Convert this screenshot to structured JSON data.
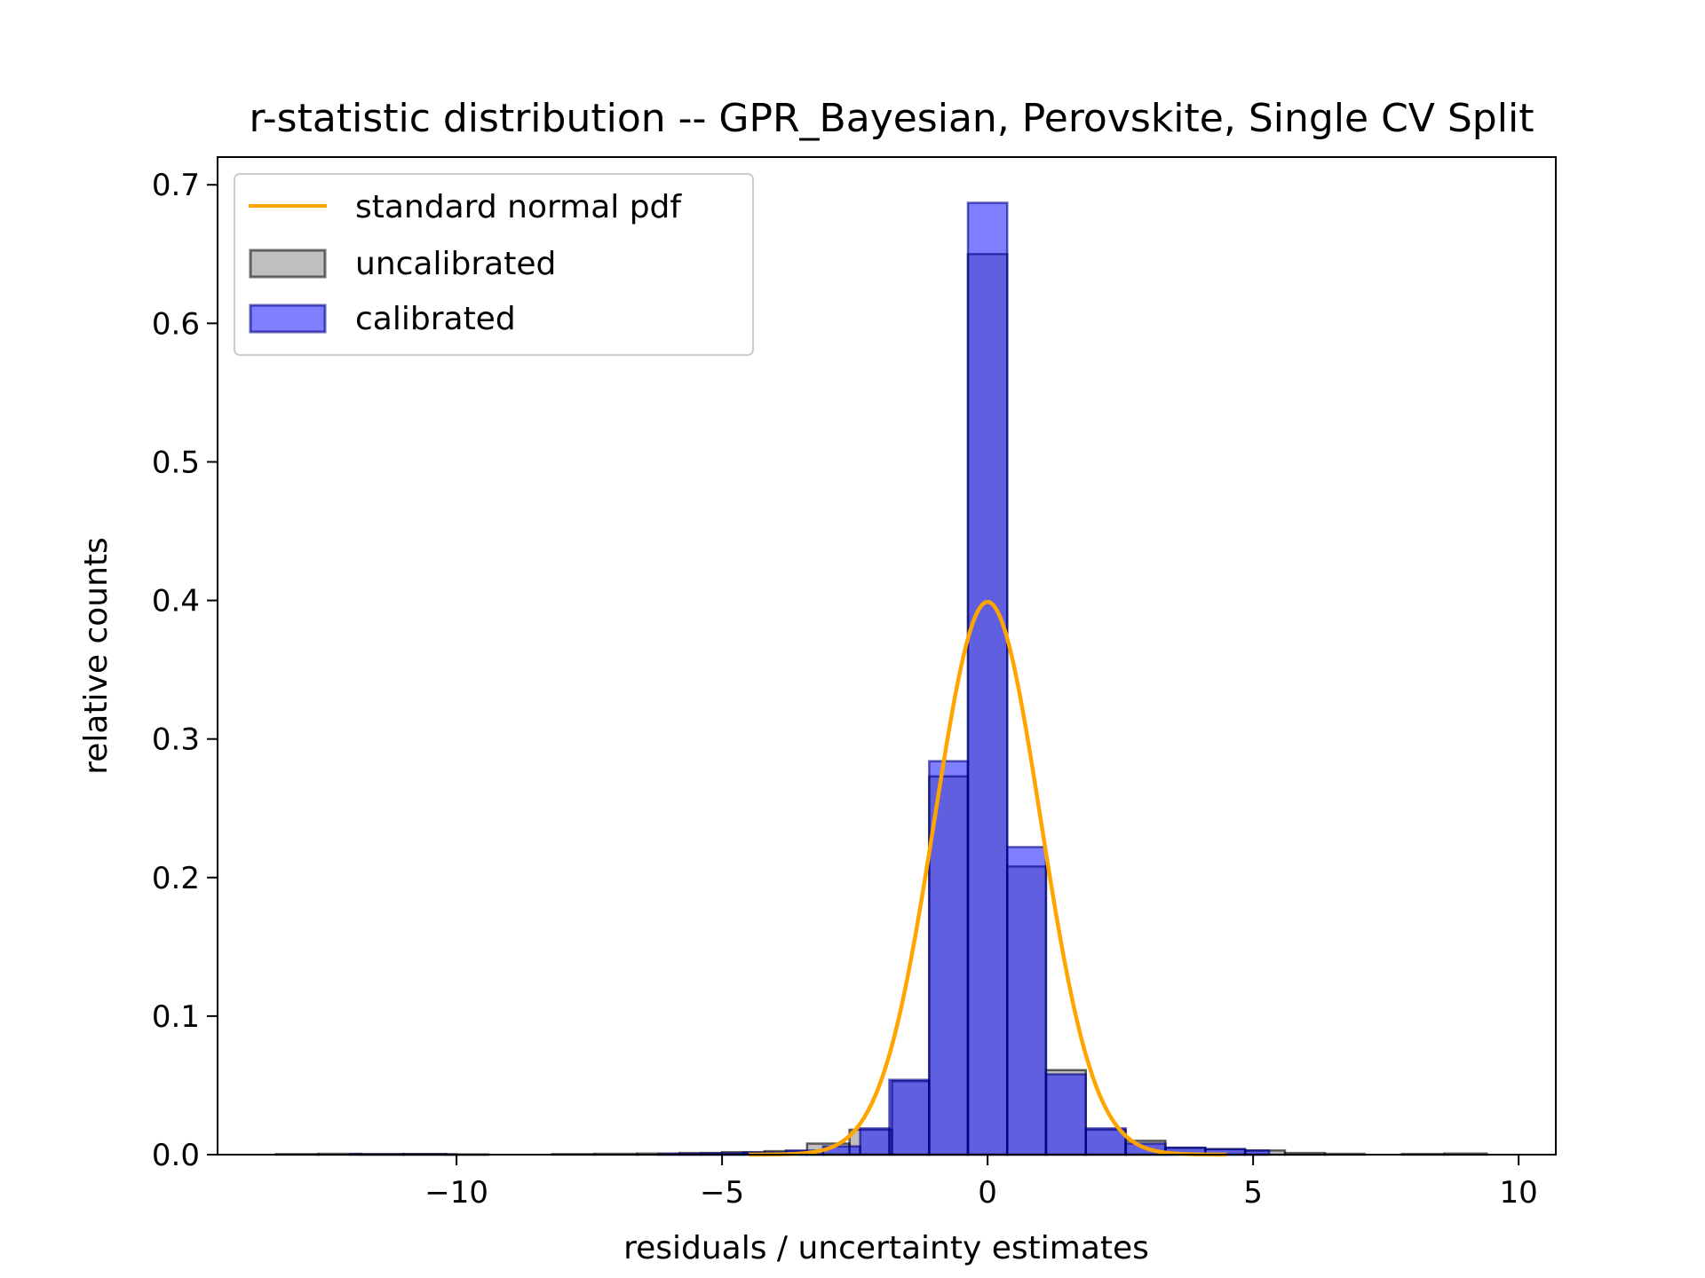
{
  "chart_data": {
    "type": "bar",
    "title": "r-statistic distribution -- GPR_Bayesian, Perovskite, Single CV Split",
    "xlabel": "residuals / uncertainty estimates",
    "ylabel": "relative counts",
    "xlim": [
      -14.5,
      10.7
    ],
    "ylim": [
      0,
      0.72
    ],
    "xticks": [
      -10,
      -5,
      0,
      5,
      10
    ],
    "xtick_labels": [
      "−10",
      "−5",
      "0",
      "5",
      "10"
    ],
    "yticks": [
      0.0,
      0.1,
      0.2,
      0.3,
      0.4,
      0.5,
      0.6,
      0.7
    ],
    "ytick_labels": [
      "0.0",
      "0.1",
      "0.2",
      "0.3",
      "0.4",
      "0.5",
      "0.6",
      "0.7"
    ],
    "grid": false,
    "legend_position": "top-left",
    "legend": [
      "standard normal pdf",
      "uncalibrated",
      "calibrated"
    ],
    "series": [
      {
        "name": "uncalibrated",
        "color": "#808080",
        "edge_color": "#000000",
        "bins": [
          [
            -13.4,
            -12.6,
            0.0004
          ],
          [
            -12.6,
            -11.8,
            0.0006
          ],
          [
            -11.8,
            -11.0,
            0.0003
          ],
          [
            -11.0,
            -10.2,
            0.0005
          ],
          [
            -10.2,
            -9.4,
            0.0002
          ],
          [
            -8.2,
            -7.4,
            0.0004
          ],
          [
            -7.4,
            -6.6,
            0.0006
          ],
          [
            -6.6,
            -5.8,
            0.0008
          ],
          [
            -5.8,
            -5.0,
            0.0012
          ],
          [
            -5.0,
            -4.2,
            0.0018
          ],
          [
            -4.2,
            -3.4,
            0.0025
          ],
          [
            -3.4,
            -2.6,
            0.008
          ],
          [
            -2.6,
            -1.8,
            0.018
          ],
          [
            -1.8,
            -1.1,
            0.053
          ],
          [
            -1.1,
            -0.37,
            0.273
          ],
          [
            -0.37,
            0.37,
            0.65
          ],
          [
            0.37,
            1.1,
            0.208
          ],
          [
            1.1,
            1.85,
            0.061
          ],
          [
            1.85,
            2.6,
            0.018
          ],
          [
            2.6,
            3.35,
            0.01
          ],
          [
            3.35,
            4.1,
            0.005
          ],
          [
            4.1,
            4.85,
            0.004
          ],
          [
            4.85,
            5.6,
            0.003
          ],
          [
            5.6,
            6.35,
            0.0012
          ],
          [
            6.35,
            7.1,
            0.0006
          ],
          [
            7.8,
            8.6,
            0.0005
          ],
          [
            8.6,
            9.4,
            0.0008
          ]
        ]
      },
      {
        "name": "calibrated",
        "color": "#0000ff",
        "edge_color": "#000080",
        "bins": [
          [
            -12.0,
            -11.0,
            0.0004
          ],
          [
            -11.0,
            -10.0,
            0.0003
          ],
          [
            -6.2,
            -5.4,
            0.0006
          ],
          [
            -5.4,
            -4.6,
            0.001
          ],
          [
            -4.6,
            -3.8,
            0.0016
          ],
          [
            -3.8,
            -3.1,
            0.003
          ],
          [
            -3.1,
            -2.4,
            0.006
          ],
          [
            -2.4,
            -1.85,
            0.019
          ],
          [
            -1.85,
            -1.1,
            0.054
          ],
          [
            -1.1,
            -0.37,
            0.284
          ],
          [
            -0.37,
            0.37,
            0.687
          ],
          [
            0.37,
            1.1,
            0.222
          ],
          [
            1.1,
            1.85,
            0.058
          ],
          [
            1.85,
            2.6,
            0.019
          ],
          [
            2.6,
            3.35,
            0.008
          ],
          [
            3.35,
            4.1,
            0.005
          ],
          [
            4.1,
            4.85,
            0.004
          ],
          [
            4.85,
            5.3,
            0.003
          ]
        ]
      },
      {
        "name": "standard normal pdf",
        "type": "line",
        "color": "#ffa500",
        "function": "standard_normal_pdf",
        "x_range": [
          -4.5,
          4.5
        ]
      }
    ]
  }
}
